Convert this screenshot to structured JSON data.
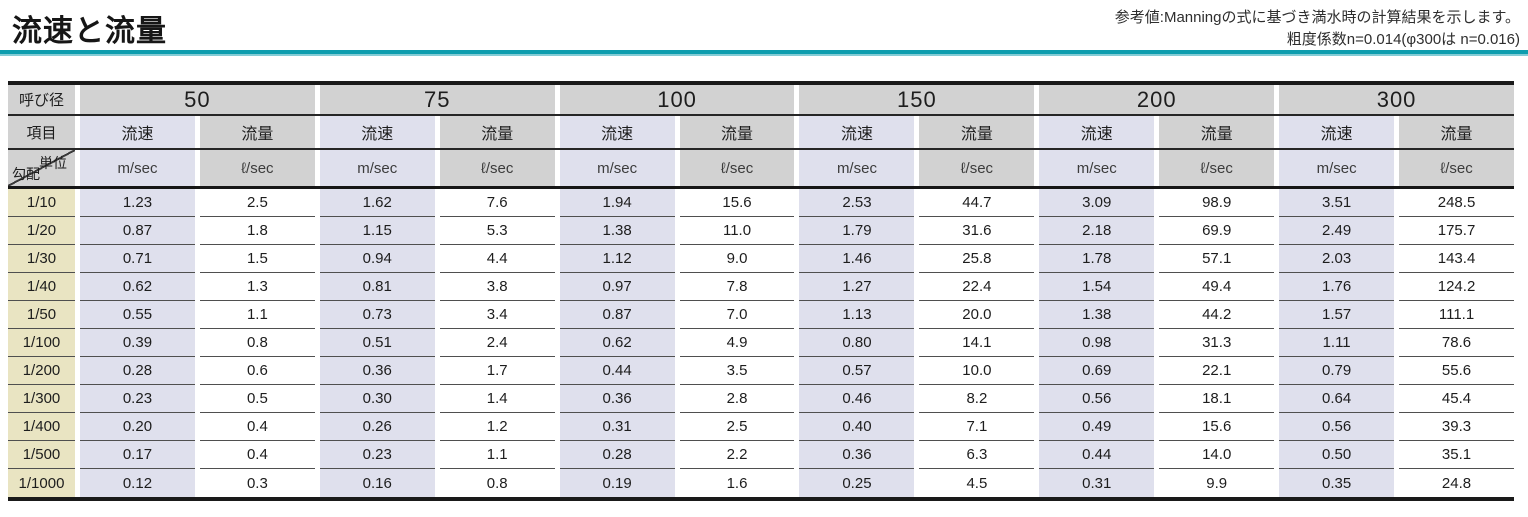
{
  "header": {
    "title": "流速と流量",
    "note_line1": "参考値:Manningの式に基づき満水時の計算結果を示します。",
    "note_line2": "粗度係数n=0.014(φ300は n=0.016)"
  },
  "table": {
    "corner_diameter": "呼び径",
    "corner_item": "項目",
    "corner_unit": "単位",
    "corner_slope": "勾配",
    "diameters": [
      "50",
      "75",
      "100",
      "150",
      "200",
      "300"
    ],
    "velocity_label": "流速",
    "flow_label": "流量",
    "velocity_unit": "m/sec",
    "flow_unit": "ℓ/sec",
    "colors": {
      "accent_teal": "#0d9dae",
      "header_bg": "#d2d2d2",
      "velocity_bg": "#dfe0ed",
      "slope_bg": "#e9e4c2",
      "flow_bg": "#ffffff"
    },
    "rows": [
      {
        "slope": "1/10",
        "values": [
          "1.23",
          "2.5",
          "1.62",
          "7.6",
          "1.94",
          "15.6",
          "2.53",
          "44.7",
          "3.09",
          "98.9",
          "3.51",
          "248.5"
        ]
      },
      {
        "slope": "1/20",
        "values": [
          "0.87",
          "1.8",
          "1.15",
          "5.3",
          "1.38",
          "11.0",
          "1.79",
          "31.6",
          "2.18",
          "69.9",
          "2.49",
          "175.7"
        ]
      },
      {
        "slope": "1/30",
        "values": [
          "0.71",
          "1.5",
          "0.94",
          "4.4",
          "1.12",
          "9.0",
          "1.46",
          "25.8",
          "1.78",
          "57.1",
          "2.03",
          "143.4"
        ]
      },
      {
        "slope": "1/40",
        "values": [
          "0.62",
          "1.3",
          "0.81",
          "3.8",
          "0.97",
          "7.8",
          "1.27",
          "22.4",
          "1.54",
          "49.4",
          "1.76",
          "124.2"
        ]
      },
      {
        "slope": "1/50",
        "values": [
          "0.55",
          "1.1",
          "0.73",
          "3.4",
          "0.87",
          "7.0",
          "1.13",
          "20.0",
          "1.38",
          "44.2",
          "1.57",
          "111.1"
        ]
      },
      {
        "slope": "1/100",
        "values": [
          "0.39",
          "0.8",
          "0.51",
          "2.4",
          "0.62",
          "4.9",
          "0.80",
          "14.1",
          "0.98",
          "31.3",
          "1.11",
          "78.6"
        ]
      },
      {
        "slope": "1/200",
        "values": [
          "0.28",
          "0.6",
          "0.36",
          "1.7",
          "0.44",
          "3.5",
          "0.57",
          "10.0",
          "0.69",
          "22.1",
          "0.79",
          "55.6"
        ]
      },
      {
        "slope": "1/300",
        "values": [
          "0.23",
          "0.5",
          "0.30",
          "1.4",
          "0.36",
          "2.8",
          "0.46",
          "8.2",
          "0.56",
          "18.1",
          "0.64",
          "45.4"
        ]
      },
      {
        "slope": "1/400",
        "values": [
          "0.20",
          "0.4",
          "0.26",
          "1.2",
          "0.31",
          "2.5",
          "0.40",
          "7.1",
          "0.49",
          "15.6",
          "0.56",
          "39.3"
        ]
      },
      {
        "slope": "1/500",
        "values": [
          "0.17",
          "0.4",
          "0.23",
          "1.1",
          "0.28",
          "2.2",
          "0.36",
          "6.3",
          "0.44",
          "14.0",
          "0.50",
          "35.1"
        ]
      },
      {
        "slope": "1/1000",
        "values": [
          "0.12",
          "0.3",
          "0.16",
          "0.8",
          "0.19",
          "1.6",
          "0.25",
          "4.5",
          "0.31",
          "9.9",
          "0.35",
          "24.8"
        ]
      }
    ]
  }
}
